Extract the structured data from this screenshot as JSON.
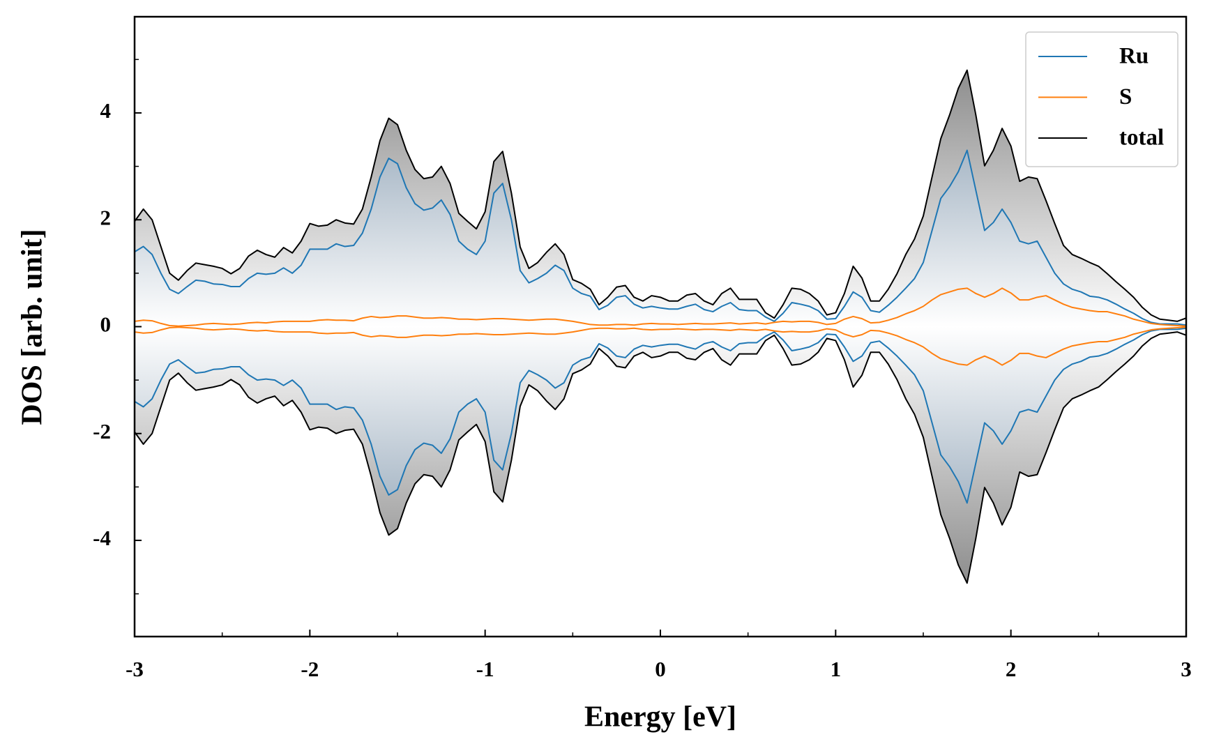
{
  "chart_data": {
    "type": "line",
    "xlabel": "Energy [eV]",
    "ylabel": "DOS [arb. unit]",
    "x": [
      -3,
      -2.95,
      -2.9,
      -2.85,
      -2.8,
      -2.75,
      -2.7,
      -2.65,
      -2.6,
      -2.55,
      -2.5,
      -2.45,
      -2.4,
      -2.35,
      -2.3,
      -2.25,
      -2.2,
      -2.15,
      -2.1,
      -2.05,
      -2,
      -1.95,
      -1.9,
      -1.85,
      -1.8,
      -1.75,
      -1.7,
      -1.65,
      -1.6,
      -1.55,
      -1.5,
      -1.45,
      -1.4,
      -1.35,
      -1.3,
      -1.25,
      -1.2,
      -1.15,
      -1.1,
      -1.05,
      -1,
      -0.95,
      -0.9,
      -0.85,
      -0.8,
      -0.75,
      -0.7,
      -0.65,
      -0.6,
      -0.55,
      -0.5,
      -0.45,
      -0.4,
      -0.35,
      -0.3,
      -0.25,
      -0.2,
      -0.15,
      -0.1,
      -0.05,
      0,
      0.05,
      0.1,
      0.15,
      0.2,
      0.25,
      0.3,
      0.35,
      0.4,
      0.45,
      0.5,
      0.55,
      0.6,
      0.65,
      0.7,
      0.75,
      0.8,
      0.85,
      0.9,
      0.95,
      1,
      1.05,
      1.1,
      1.15,
      1.2,
      1.25,
      1.3,
      1.35,
      1.4,
      1.45,
      1.5,
      1.55,
      1.6,
      1.65,
      1.7,
      1.75,
      1.8,
      1.85,
      1.9,
      1.95,
      2,
      2.05,
      2.1,
      2.15,
      2.2,
      2.25,
      2.3,
      2.35,
      2.4,
      2.45,
      2.5,
      2.55,
      2.6,
      2.65,
      2.7,
      2.75,
      2.8,
      2.85,
      2.9,
      2.95,
      3
    ],
    "series": [
      {
        "name": "Ru",
        "color": "#1f77b4",
        "fill": "#7d94aa",
        "values": [
          1.4,
          1.5,
          1.35,
          1.0,
          0.7,
          0.62,
          0.75,
          0.87,
          0.85,
          0.8,
          0.79,
          0.75,
          0.75,
          0.9,
          1.0,
          0.98,
          1.0,
          1.1,
          1.0,
          1.15,
          1.45,
          1.45,
          1.45,
          1.55,
          1.5,
          1.52,
          1.75,
          2.2,
          2.8,
          3.15,
          3.05,
          2.6,
          2.3,
          2.18,
          2.22,
          2.37,
          2.1,
          1.6,
          1.45,
          1.35,
          1.6,
          2.5,
          2.68,
          2.0,
          1.05,
          0.82,
          0.9,
          1.0,
          1.15,
          1.05,
          0.72,
          0.62,
          0.57,
          0.32,
          0.4,
          0.55,
          0.58,
          0.42,
          0.35,
          0.38,
          0.35,
          0.33,
          0.33,
          0.38,
          0.42,
          0.32,
          0.28,
          0.38,
          0.45,
          0.32,
          0.3,
          0.3,
          0.18,
          0.1,
          0.25,
          0.45,
          0.42,
          0.38,
          0.3,
          0.14,
          0.15,
          0.38,
          0.65,
          0.55,
          0.3,
          0.27,
          0.4,
          0.55,
          0.72,
          0.9,
          1.2,
          1.8,
          2.4,
          2.62,
          2.9,
          3.3,
          2.55,
          1.8,
          1.95,
          2.2,
          1.95,
          1.6,
          1.55,
          1.6,
          1.3,
          1.0,
          0.8,
          0.7,
          0.65,
          0.57,
          0.55,
          0.5,
          0.42,
          0.33,
          0.25,
          0.15,
          0.08,
          0.05,
          0.05,
          0.05,
          0.03
        ],
        "values_down": [
          -1.4,
          -1.5,
          -1.35,
          -1.0,
          -0.7,
          -0.62,
          -0.75,
          -0.87,
          -0.85,
          -0.8,
          -0.79,
          -0.75,
          -0.75,
          -0.9,
          -1.0,
          -0.98,
          -1.0,
          -1.1,
          -1.0,
          -1.15,
          -1.45,
          -1.45,
          -1.45,
          -1.55,
          -1.5,
          -1.52,
          -1.75,
          -2.2,
          -2.8,
          -3.15,
          -3.05,
          -2.6,
          -2.3,
          -2.18,
          -2.22,
          -2.37,
          -2.1,
          -1.6,
          -1.45,
          -1.35,
          -1.6,
          -2.5,
          -2.68,
          -2.0,
          -1.05,
          -0.82,
          -0.9,
          -1.0,
          -1.15,
          -1.05,
          -0.72,
          -0.62,
          -0.57,
          -0.32,
          -0.4,
          -0.55,
          -0.58,
          -0.42,
          -0.35,
          -0.38,
          -0.35,
          -0.33,
          -0.33,
          -0.38,
          -0.42,
          -0.32,
          -0.28,
          -0.38,
          -0.45,
          -0.32,
          -0.3,
          -0.3,
          -0.18,
          -0.1,
          -0.25,
          -0.45,
          -0.42,
          -0.38,
          -0.3,
          -0.14,
          -0.15,
          -0.38,
          -0.65,
          -0.55,
          -0.3,
          -0.27,
          -0.4,
          -0.55,
          -0.72,
          -0.9,
          -1.2,
          -1.8,
          -2.4,
          -2.62,
          -2.9,
          -3.3,
          -2.55,
          -1.8,
          -1.95,
          -2.2,
          -1.95,
          -1.6,
          -1.55,
          -1.6,
          -1.3,
          -1.0,
          -0.8,
          -0.7,
          -0.65,
          -0.57,
          -0.55,
          -0.5,
          -0.42,
          -0.33,
          -0.25,
          -0.15,
          -0.08,
          -0.05,
          -0.05,
          -0.05,
          -0.03
        ]
      },
      {
        "name": "S",
        "color": "#ff7f0e",
        "fill": "#f2a86c",
        "values": [
          0.1,
          0.12,
          0.11,
          0.06,
          0.02,
          0.01,
          0.02,
          0.03,
          0.05,
          0.06,
          0.05,
          0.04,
          0.05,
          0.07,
          0.08,
          0.07,
          0.09,
          0.1,
          0.1,
          0.1,
          0.1,
          0.12,
          0.13,
          0.12,
          0.12,
          0.11,
          0.16,
          0.19,
          0.17,
          0.18,
          0.2,
          0.2,
          0.18,
          0.16,
          0.16,
          0.17,
          0.16,
          0.14,
          0.14,
          0.13,
          0.14,
          0.15,
          0.15,
          0.14,
          0.13,
          0.12,
          0.13,
          0.14,
          0.14,
          0.12,
          0.1,
          0.07,
          0.04,
          0.03,
          0.03,
          0.04,
          0.04,
          0.03,
          0.05,
          0.06,
          0.05,
          0.05,
          0.04,
          0.05,
          0.06,
          0.05,
          0.05,
          0.06,
          0.07,
          0.05,
          0.06,
          0.07,
          0.05,
          0.08,
          0.1,
          0.09,
          0.1,
          0.1,
          0.08,
          0.04,
          0.06,
          0.14,
          0.19,
          0.15,
          0.07,
          0.08,
          0.12,
          0.17,
          0.24,
          0.3,
          0.38,
          0.5,
          0.6,
          0.65,
          0.7,
          0.72,
          0.62,
          0.55,
          0.62,
          0.72,
          0.63,
          0.5,
          0.5,
          0.55,
          0.58,
          0.5,
          0.42,
          0.36,
          0.33,
          0.3,
          0.28,
          0.28,
          0.24,
          0.2,
          0.14,
          0.1,
          0.06,
          0.04,
          0.03,
          0.02,
          0.01
        ],
        "values_down": [
          -0.1,
          -0.12,
          -0.11,
          -0.06,
          -0.02,
          -0.01,
          -0.02,
          -0.03,
          -0.05,
          -0.06,
          -0.05,
          -0.04,
          -0.05,
          -0.07,
          -0.08,
          -0.07,
          -0.09,
          -0.1,
          -0.1,
          -0.1,
          -0.1,
          -0.12,
          -0.13,
          -0.12,
          -0.12,
          -0.11,
          -0.16,
          -0.19,
          -0.17,
          -0.18,
          -0.2,
          -0.2,
          -0.18,
          -0.16,
          -0.16,
          -0.17,
          -0.16,
          -0.14,
          -0.14,
          -0.13,
          -0.14,
          -0.15,
          -0.15,
          -0.14,
          -0.13,
          -0.12,
          -0.13,
          -0.14,
          -0.14,
          -0.12,
          -0.1,
          -0.07,
          -0.04,
          -0.03,
          -0.03,
          -0.04,
          -0.04,
          -0.03,
          -0.05,
          -0.06,
          -0.05,
          -0.05,
          -0.04,
          -0.05,
          -0.06,
          -0.05,
          -0.05,
          -0.06,
          -0.07,
          -0.05,
          -0.06,
          -0.07,
          -0.05,
          -0.08,
          -0.1,
          -0.09,
          -0.1,
          -0.1,
          -0.08,
          -0.04,
          -0.06,
          -0.14,
          -0.19,
          -0.15,
          -0.07,
          -0.08,
          -0.12,
          -0.17,
          -0.24,
          -0.3,
          -0.38,
          -0.5,
          -0.6,
          -0.65,
          -0.7,
          -0.72,
          -0.62,
          -0.55,
          -0.62,
          -0.72,
          -0.63,
          -0.5,
          -0.5,
          -0.55,
          -0.58,
          -0.5,
          -0.42,
          -0.36,
          -0.33,
          -0.3,
          -0.28,
          -0.28,
          -0.24,
          -0.2,
          -0.14,
          -0.1,
          -0.06,
          -0.04,
          -0.03,
          -0.02,
          -0.01
        ]
      },
      {
        "name": "total",
        "color": "#000000",
        "fill": "#8a8a8a",
        "values": [
          1.97,
          2.2,
          2.0,
          1.5,
          1.0,
          0.87,
          1.05,
          1.19,
          1.16,
          1.13,
          1.09,
          0.99,
          1.09,
          1.32,
          1.43,
          1.35,
          1.3,
          1.48,
          1.38,
          1.6,
          1.93,
          1.88,
          1.9,
          2.0,
          1.94,
          1.92,
          2.2,
          2.8,
          3.48,
          3.9,
          3.78,
          3.3,
          2.94,
          2.77,
          2.8,
          3.0,
          2.68,
          2.12,
          1.97,
          1.83,
          2.15,
          3.09,
          3.28,
          2.5,
          1.49,
          1.09,
          1.2,
          1.39,
          1.55,
          1.35,
          0.88,
          0.81,
          0.7,
          0.41,
          0.55,
          0.74,
          0.77,
          0.55,
          0.48,
          0.58,
          0.55,
          0.48,
          0.48,
          0.59,
          0.62,
          0.48,
          0.41,
          0.62,
          0.72,
          0.51,
          0.51,
          0.51,
          0.26,
          0.16,
          0.41,
          0.72,
          0.7,
          0.62,
          0.48,
          0.22,
          0.26,
          0.62,
          1.13,
          0.91,
          0.48,
          0.48,
          0.7,
          0.99,
          1.35,
          1.64,
          2.07,
          2.8,
          3.52,
          3.96,
          4.46,
          4.8,
          3.96,
          3.01,
          3.3,
          3.71,
          3.38,
          2.72,
          2.8,
          2.77,
          2.36,
          1.93,
          1.52,
          1.35,
          1.28,
          1.2,
          1.13,
          0.99,
          0.84,
          0.7,
          0.55,
          0.36,
          0.22,
          0.14,
          0.12,
          0.1,
          0.16
        ],
        "values_down": [
          -1.97,
          -2.2,
          -2.0,
          -1.5,
          -1.0,
          -0.87,
          -1.05,
          -1.19,
          -1.16,
          -1.13,
          -1.09,
          -0.99,
          -1.09,
          -1.32,
          -1.43,
          -1.35,
          -1.3,
          -1.48,
          -1.38,
          -1.6,
          -1.93,
          -1.88,
          -1.9,
          -2.0,
          -1.94,
          -1.92,
          -2.2,
          -2.8,
          -3.48,
          -3.9,
          -3.78,
          -3.3,
          -2.94,
          -2.77,
          -2.8,
          -3.0,
          -2.68,
          -2.12,
          -1.97,
          -1.83,
          -2.15,
          -3.09,
          -3.28,
          -2.5,
          -1.49,
          -1.09,
          -1.2,
          -1.39,
          -1.55,
          -1.35,
          -0.88,
          -0.81,
          -0.7,
          -0.41,
          -0.55,
          -0.74,
          -0.77,
          -0.55,
          -0.48,
          -0.58,
          -0.55,
          -0.48,
          -0.48,
          -0.59,
          -0.62,
          -0.48,
          -0.41,
          -0.62,
          -0.72,
          -0.51,
          -0.51,
          -0.51,
          -0.26,
          -0.16,
          -0.41,
          -0.72,
          -0.7,
          -0.62,
          -0.48,
          -0.22,
          -0.26,
          -0.62,
          -1.13,
          -0.91,
          -0.48,
          -0.48,
          -0.7,
          -0.99,
          -1.35,
          -1.64,
          -2.07,
          -2.8,
          -3.52,
          -3.96,
          -4.46,
          -4.8,
          -3.96,
          -3.01,
          -3.3,
          -3.71,
          -3.38,
          -2.72,
          -2.8,
          -2.77,
          -2.36,
          -1.93,
          -1.52,
          -1.35,
          -1.28,
          -1.2,
          -1.13,
          -0.99,
          -0.84,
          -0.7,
          -0.55,
          -0.36,
          -0.22,
          -0.14,
          -0.12,
          -0.1,
          -0.16
        ]
      }
    ],
    "xlim": [
      -3,
      3
    ],
    "ylim": [
      -5.8,
      5.8
    ],
    "xticks": [
      -3,
      -2,
      -1,
      0,
      1,
      2,
      3
    ],
    "yticks": [
      -4,
      -2,
      0,
      2,
      4
    ],
    "xminor": [
      -2.5,
      -1.5,
      -0.5,
      0.5,
      1.5,
      2.5
    ],
    "yminor": [
      -5,
      -3,
      -1,
      1,
      3,
      5
    ],
    "grid": false,
    "legend": "upper right"
  }
}
